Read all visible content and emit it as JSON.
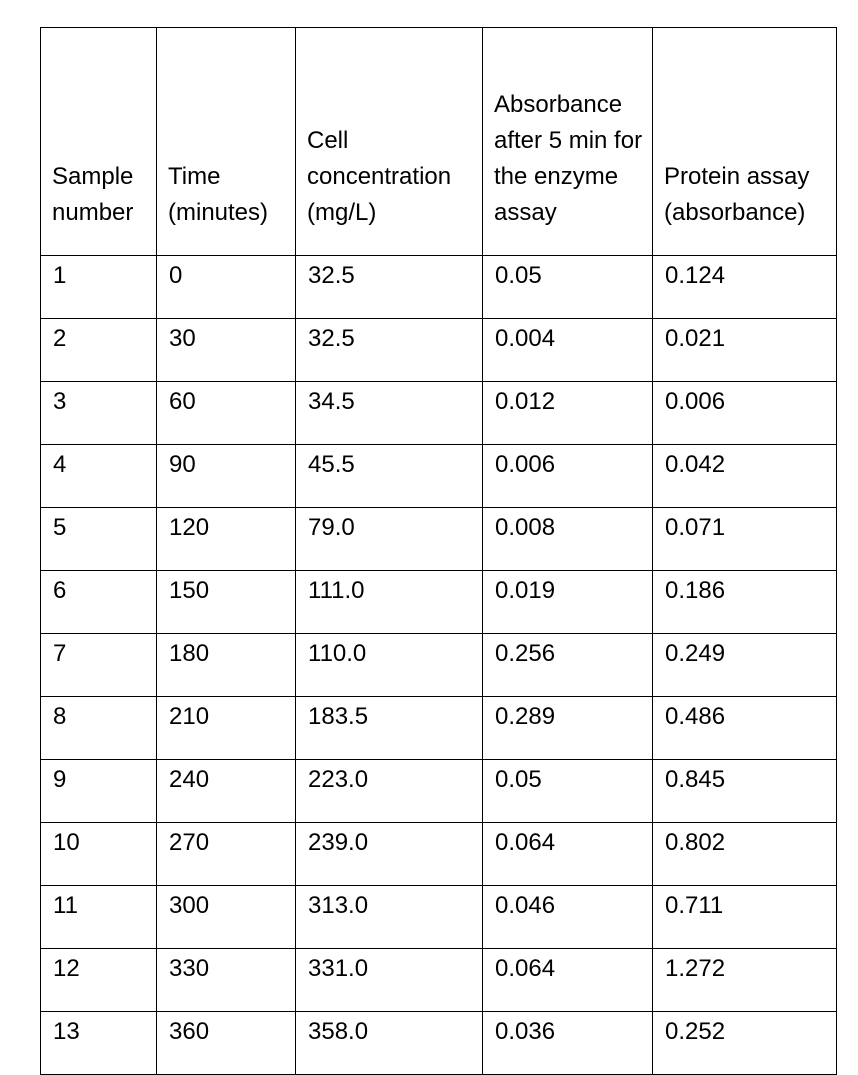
{
  "table": {
    "headers": [
      "Sample number",
      "Time (minutes)",
      "Cell concentration (mg/L)",
      "Absorbance after 5 min for the enzyme assay",
      "Protein assay (absorbance)"
    ],
    "rows": [
      [
        "1",
        "0",
        "32.5",
        "0.05",
        "0.124"
      ],
      [
        "2",
        "30",
        "32.5",
        "0.004",
        "0.021"
      ],
      [
        "3",
        "60",
        "34.5",
        "0.012",
        "0.006"
      ],
      [
        "4",
        "90",
        "45.5",
        "0.006",
        "0.042"
      ],
      [
        "5",
        "120",
        "79.0",
        "0.008",
        "0.071"
      ],
      [
        "6",
        "150",
        "111.0",
        "0.019",
        "0.186"
      ],
      [
        "7",
        "180",
        "110.0",
        "0.256",
        "0.249"
      ],
      [
        "8",
        "210",
        "183.5",
        "0.289",
        "0.486"
      ],
      [
        "9",
        "240",
        "223.0",
        "0.05",
        "0.845"
      ],
      [
        "10",
        "270",
        "239.0",
        "0.064",
        "0.802"
      ],
      [
        "11",
        "300",
        "313.0",
        "0.046",
        "0.711"
      ],
      [
        "12",
        "330",
        "331.0",
        "0.064",
        "1.272"
      ],
      [
        "13",
        "360",
        "358.0",
        "0.036",
        "0.252"
      ]
    ]
  }
}
